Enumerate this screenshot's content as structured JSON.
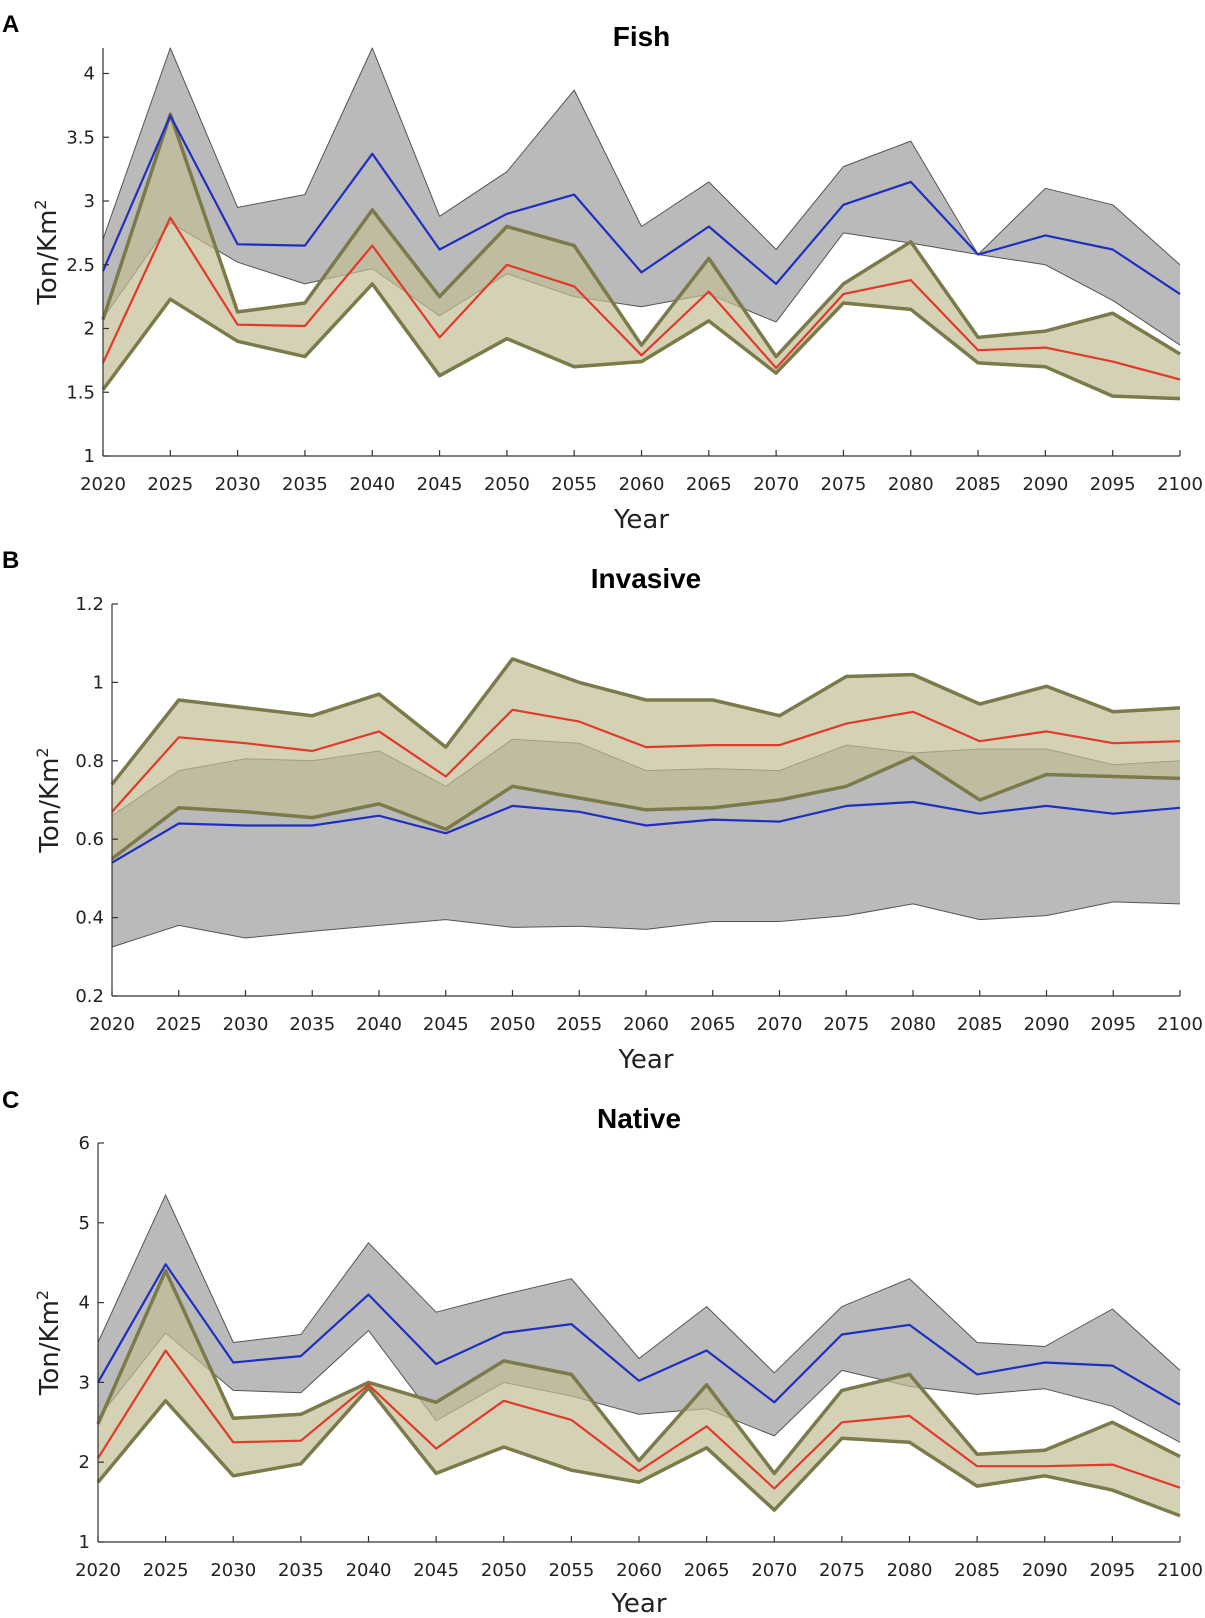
{
  "chart_data": [
    {
      "type": "area",
      "panel_label": "A",
      "title": "Fish",
      "xlabel": "Year",
      "ylabel_base": "Ton/Km",
      "ylabel_sup": "2",
      "ylim": [
        1,
        4.2
      ],
      "yticks": [
        "1",
        "1.5",
        "2",
        "2.5",
        "3",
        "3.5",
        "4"
      ],
      "ytick_values": [
        1,
        1.5,
        2,
        2.5,
        3,
        3.5,
        4
      ],
      "x": [
        "2020",
        "2025",
        "2030",
        "2035",
        "2040",
        "2045",
        "2050",
        "2055",
        "2060",
        "2065",
        "2070",
        "2075",
        "2080",
        "2085",
        "2090",
        "2095",
        "2100"
      ],
      "series": [
        {
          "name": "grey band upper",
          "role": "band_upper",
          "values": [
            2.7,
            4.2,
            2.95,
            3.05,
            4.2,
            2.88,
            3.23,
            3.87,
            2.8,
            3.15,
            2.62,
            3.27,
            3.47,
            2.58,
            3.1,
            2.97,
            2.5
          ]
        },
        {
          "name": "grey band lower",
          "role": "band_lower",
          "values": [
            2.08,
            2.83,
            2.52,
            2.35,
            2.47,
            2.1,
            2.43,
            2.25,
            2.17,
            2.27,
            2.05,
            2.75,
            2.67,
            2.58,
            2.5,
            2.22,
            1.87
          ]
        },
        {
          "name": "olive band upper",
          "role": "band_upper",
          "values": [
            2.07,
            3.68,
            2.13,
            2.2,
            2.93,
            2.25,
            2.8,
            2.65,
            1.87,
            2.55,
            1.78,
            2.35,
            2.68,
            1.93,
            1.98,
            2.12,
            1.8
          ]
        },
        {
          "name": "olive band lower",
          "role": "band_lower",
          "values": [
            1.52,
            2.23,
            1.9,
            1.78,
            2.35,
            1.63,
            1.92,
            1.7,
            1.74,
            2.06,
            1.65,
            2.2,
            2.15,
            1.73,
            1.7,
            1.47,
            1.45
          ]
        },
        {
          "name": "blue mean",
          "role": "line",
          "values": [
            2.45,
            3.67,
            2.66,
            2.65,
            3.37,
            2.62,
            2.9,
            3.05,
            2.44,
            2.8,
            2.35,
            2.97,
            3.15,
            2.58,
            2.73,
            2.62,
            2.27
          ]
        },
        {
          "name": "red mean",
          "role": "line",
          "values": [
            1.73,
            2.87,
            2.03,
            2.02,
            2.65,
            1.93,
            2.5,
            2.33,
            1.79,
            2.29,
            1.69,
            2.27,
            2.38,
            1.83,
            1.85,
            1.74,
            1.6
          ]
        }
      ]
    },
    {
      "type": "area",
      "panel_label": "B",
      "title": "Invasive",
      "xlabel": "Year",
      "ylabel_base": "Ton/Km",
      "ylabel_sup": "2",
      "ylim": [
        0.2,
        1.2
      ],
      "yticks": [
        "0.2",
        "0.4",
        "0.6",
        "0.8",
        "1",
        "1.2"
      ],
      "ytick_values": [
        0.2,
        0.4,
        0.6,
        0.8,
        1.0,
        1.2
      ],
      "x": [
        "2020",
        "2025",
        "2030",
        "2035",
        "2040",
        "2045",
        "2050",
        "2055",
        "2060",
        "2065",
        "2070",
        "2075",
        "2080",
        "2085",
        "2090",
        "2095",
        "2100"
      ],
      "series": [
        {
          "name": "grey band upper",
          "role": "band_upper",
          "values": [
            0.66,
            0.775,
            0.805,
            0.8,
            0.825,
            0.735,
            0.855,
            0.845,
            0.775,
            0.78,
            0.775,
            0.84,
            0.82,
            0.83,
            0.83,
            0.79,
            0.8
          ]
        },
        {
          "name": "grey band lower",
          "role": "band_lower",
          "values": [
            0.325,
            0.38,
            0.348,
            0.365,
            0.38,
            0.395,
            0.375,
            0.378,
            0.37,
            0.39,
            0.39,
            0.405,
            0.435,
            0.395,
            0.405,
            0.44,
            0.435
          ]
        },
        {
          "name": "olive band upper",
          "role": "band_upper",
          "values": [
            0.74,
            0.955,
            0.935,
            0.915,
            0.97,
            0.835,
            1.06,
            1.0,
            0.955,
            0.955,
            0.915,
            1.015,
            1.02,
            0.945,
            0.99,
            0.925,
            0.935
          ]
        },
        {
          "name": "olive band lower",
          "role": "band_lower",
          "values": [
            0.55,
            0.68,
            0.67,
            0.655,
            0.69,
            0.625,
            0.735,
            0.705,
            0.675,
            0.68,
            0.7,
            0.735,
            0.81,
            0.7,
            0.765,
            0.76,
            0.755
          ]
        },
        {
          "name": "blue mean",
          "role": "line",
          "values": [
            0.54,
            0.64,
            0.635,
            0.635,
            0.66,
            0.615,
            0.685,
            0.67,
            0.635,
            0.65,
            0.645,
            0.685,
            0.695,
            0.665,
            0.685,
            0.665,
            0.68
          ]
        },
        {
          "name": "red mean",
          "role": "line",
          "values": [
            0.67,
            0.86,
            0.845,
            0.825,
            0.875,
            0.76,
            0.93,
            0.9,
            0.835,
            0.84,
            0.84,
            0.895,
            0.925,
            0.85,
            0.875,
            0.845,
            0.85
          ]
        }
      ]
    },
    {
      "type": "area",
      "panel_label": "C",
      "title": "Native",
      "xlabel": "Year",
      "ylabel_base": "Ton/Km",
      "ylabel_sup": "2",
      "ylim": [
        1,
        6
      ],
      "yticks": [
        "1",
        "2",
        "3",
        "4",
        "5",
        "6"
      ],
      "ytick_values": [
        1,
        2,
        3,
        4,
        5,
        6
      ],
      "x": [
        "2020",
        "2025",
        "2030",
        "2035",
        "2040",
        "2045",
        "2050",
        "2055",
        "2060",
        "2065",
        "2070",
        "2075",
        "2080",
        "2085",
        "2090",
        "2095",
        "2100"
      ],
      "series": [
        {
          "name": "grey band upper",
          "role": "band_upper",
          "values": [
            3.5,
            5.35,
            3.5,
            3.6,
            4.75,
            3.88,
            4.1,
            4.3,
            3.3,
            3.95,
            3.12,
            3.95,
            4.3,
            3.5,
            3.45,
            3.92,
            3.15
          ]
        },
        {
          "name": "grey band lower",
          "role": "band_lower",
          "values": [
            2.55,
            3.62,
            2.9,
            2.87,
            3.65,
            2.52,
            3.0,
            2.83,
            2.6,
            2.67,
            2.33,
            3.15,
            2.95,
            2.85,
            2.92,
            2.7,
            2.25
          ]
        },
        {
          "name": "olive band upper",
          "role": "band_upper",
          "values": [
            2.48,
            4.4,
            2.55,
            2.6,
            3.0,
            2.75,
            3.27,
            3.1,
            2.02,
            2.97,
            1.86,
            2.9,
            3.1,
            2.1,
            2.15,
            2.5,
            2.07
          ]
        },
        {
          "name": "olive band lower",
          "role": "band_lower",
          "values": [
            1.75,
            2.77,
            1.83,
            1.98,
            2.93,
            1.86,
            2.19,
            1.9,
            1.75,
            2.18,
            1.4,
            2.3,
            2.25,
            1.7,
            1.83,
            1.65,
            1.33
          ]
        },
        {
          "name": "blue mean",
          "role": "line",
          "values": [
            3.0,
            4.48,
            3.25,
            3.33,
            4.1,
            3.23,
            3.62,
            3.73,
            3.02,
            3.4,
            2.75,
            3.6,
            3.72,
            3.1,
            3.25,
            3.21,
            2.72
          ]
        },
        {
          "name": "red mean",
          "role": "line",
          "values": [
            2.05,
            3.4,
            2.25,
            2.27,
            2.97,
            2.17,
            2.77,
            2.53,
            1.89,
            2.45,
            1.67,
            2.5,
            2.58,
            1.95,
            1.95,
            1.97,
            1.68
          ]
        }
      ]
    }
  ],
  "colors": {
    "grey_fill": "#a9a9a9",
    "grey_edge": "#555555",
    "olive_fill": "#c3bd95",
    "olive_edge": "#7b7a4a",
    "blue": "#1f2fc0",
    "red": "#e03a2a"
  }
}
